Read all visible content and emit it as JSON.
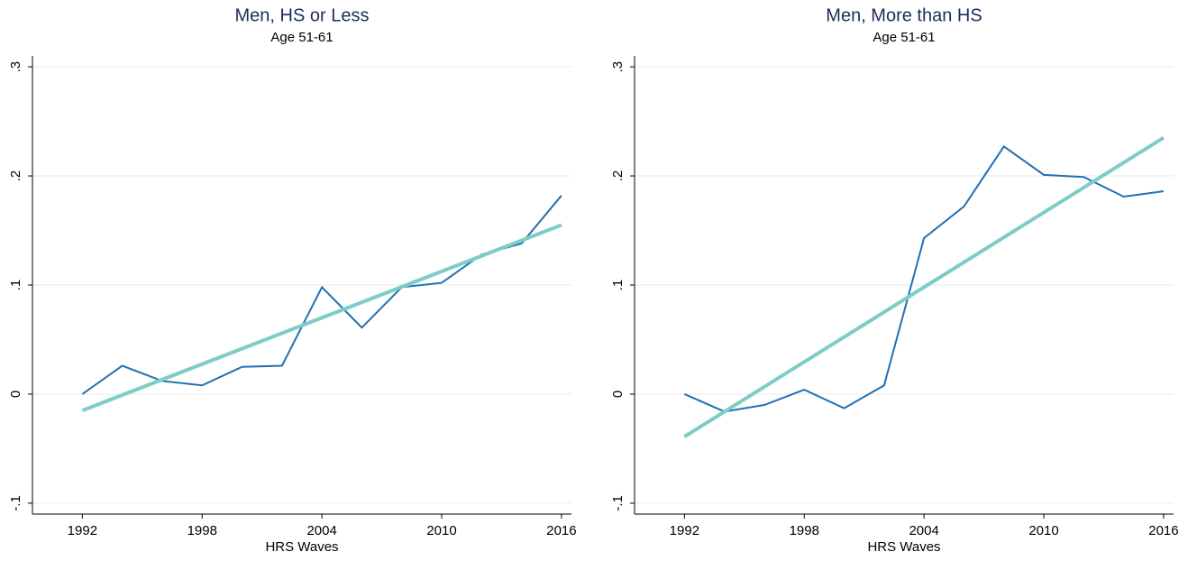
{
  "chart_data": [
    {
      "type": "line",
      "title": "Men, HS or Less",
      "subtitle": "Age 51-61",
      "x_label": "HRS Waves",
      "xlim": [
        1989.5,
        2016.5
      ],
      "ylim": [
        -0.11,
        0.31
      ],
      "grid": true,
      "xticks": [
        1992,
        1998,
        2004,
        2010,
        2016
      ],
      "yticks": [
        {
          "value": -0.1,
          "label": "-.1"
        },
        0,
        {
          "value": 0.1,
          "label": ".1"
        },
        {
          "value": 0.2,
          "label": ".2"
        },
        {
          "value": 0.3,
          "label": ".3"
        }
      ],
      "series": [
        {
          "color": "#2170b3",
          "x": [
            1992,
            1994,
            1996,
            1998,
            2000,
            2002,
            2004,
            2006,
            2008,
            2010,
            2012,
            2014,
            2016
          ],
          "values": [
            0,
            0.026,
            0.012,
            0.008,
            0.025,
            0.026,
            0.098,
            0.061,
            0.098,
            0.102,
            0.128,
            0.138,
            0.182
          ]
        },
        {
          "color": "#7dcdc6",
          "x": [
            1992,
            2016
          ],
          "values": [
            -0.015,
            0.155
          ]
        }
      ]
    },
    {
      "type": "line",
      "title": "Men, More than HS",
      "subtitle": "Age 51-61",
      "x_label": "HRS Waves",
      "xlim": [
        1989.5,
        2016.5
      ],
      "ylim": [
        -0.11,
        0.31
      ],
      "grid": true,
      "xticks": [
        1992,
        1998,
        2004,
        2010,
        2016
      ],
      "yticks": [
        {
          "value": -0.1,
          "label": "-.1"
        },
        0,
        {
          "value": 0.1,
          "label": ".1"
        },
        {
          "value": 0.2,
          "label": ".2"
        },
        {
          "value": 0.3,
          "label": ".3"
        }
      ],
      "series": [
        {
          "color": "#2170b3",
          "x": [
            1992,
            1994,
            1996,
            1998,
            2000,
            2002,
            2004,
            2006,
            2008,
            2010,
            2012,
            2014,
            2016
          ],
          "values": [
            0,
            -0.016,
            -0.01,
            0.004,
            -0.013,
            0.008,
            0.143,
            0.172,
            0.227,
            0.201,
            0.199,
            0.181,
            0.186
          ]
        },
        {
          "color": "#7dcdc6",
          "x": [
            1992,
            2016
          ],
          "values": [
            -0.039,
            0.235
          ]
        }
      ]
    }
  ]
}
